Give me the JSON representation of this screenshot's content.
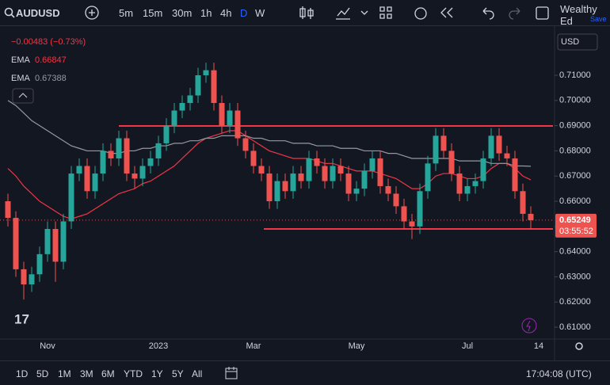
{
  "toolbar": {
    "symbol": "AUDUSD",
    "intervals": [
      "5m",
      "15m",
      "30m",
      "1h",
      "4h",
      "D",
      "W"
    ],
    "active_interval": 5,
    "account": "Wealthy Ed",
    "save": "Save"
  },
  "legend": {
    "change": "−0.00483 (−0.73%)",
    "ema_label": "EMA"
  },
  "currency": "USD",
  "countdown": "03:55:52",
  "bottom_bar": {
    "ranges": [
      "1D",
      "5D",
      "1M",
      "3M",
      "6M",
      "YTD",
      "1Y",
      "5Y",
      "All"
    ],
    "clock": "17:04:08 (UTC)"
  },
  "chart_data": {
    "type": "candlestick",
    "categories": [
      null,
      null,
      null,
      null,
      null,
      "Nov",
      null,
      null,
      null,
      null,
      null,
      null,
      null,
      null,
      null,
      null,
      null,
      null,
      null,
      "2023",
      null,
      null,
      null,
      null,
      null,
      null,
      null,
      null,
      null,
      null,
      null,
      "Mar",
      null,
      null,
      null,
      null,
      null,
      null,
      null,
      null,
      null,
      null,
      null,
      null,
      "May",
      null,
      null,
      null,
      null,
      null,
      null,
      null,
      null,
      null,
      null,
      null,
      null,
      null,
      "Jul",
      null,
      null,
      null,
      null,
      null,
      null,
      null,
      null,
      "14"
    ],
    "candles": [
      [
        0.66,
        0.663,
        0.65,
        0.6534
      ],
      [
        0.6534,
        0.656,
        0.63,
        0.633
      ],
      [
        0.633,
        0.636,
        0.621,
        0.627
      ],
      [
        0.627,
        0.634,
        0.624,
        0.631
      ],
      [
        0.631,
        0.642,
        0.628,
        0.639
      ],
      [
        0.639,
        0.652,
        0.636,
        0.649
      ],
      [
        0.649,
        0.652,
        0.628,
        0.636
      ],
      [
        0.636,
        0.655,
        0.633,
        0.652
      ],
      [
        0.652,
        0.674,
        0.649,
        0.671
      ],
      [
        0.671,
        0.677,
        0.668,
        0.674
      ],
      [
        0.674,
        0.677,
        0.661,
        0.664
      ],
      [
        0.664,
        0.674,
        0.661,
        0.671
      ],
      [
        0.671,
        0.683,
        0.668,
        0.68
      ],
      [
        0.68,
        0.683,
        0.674,
        0.677
      ],
      [
        0.677,
        0.688,
        0.674,
        0.685
      ],
      [
        0.685,
        0.688,
        0.668,
        0.671
      ],
      [
        0.671,
        0.674,
        0.665,
        0.669
      ],
      [
        0.669,
        0.677,
        0.666,
        0.674
      ],
      [
        0.674,
        0.68,
        0.671,
        0.677
      ],
      [
        0.677,
        0.686,
        0.674,
        0.683
      ],
      [
        0.683,
        0.693,
        0.68,
        0.69
      ],
      [
        0.69,
        0.699,
        0.687,
        0.696
      ],
      [
        0.696,
        0.702,
        0.693,
        0.699
      ],
      [
        0.699,
        0.705,
        0.696,
        0.702
      ],
      [
        0.702,
        0.713,
        0.699,
        0.71
      ],
      [
        0.71,
        0.715,
        0.707,
        0.712
      ],
      [
        0.712,
        0.715,
        0.696,
        0.699
      ],
      [
        0.699,
        0.702,
        0.687,
        0.69
      ],
      [
        0.69,
        0.699,
        0.687,
        0.696
      ],
      [
        0.696,
        0.699,
        0.682,
        0.685
      ],
      [
        0.685,
        0.688,
        0.677,
        0.68
      ],
      [
        0.68,
        0.683,
        0.671,
        0.674
      ],
      [
        0.674,
        0.677,
        0.668,
        0.671
      ],
      [
        0.671,
        0.674,
        0.657,
        0.66
      ],
      [
        0.66,
        0.671,
        0.657,
        0.668
      ],
      [
        0.668,
        0.671,
        0.661,
        0.664
      ],
      [
        0.664,
        0.674,
        0.661,
        0.671
      ],
      [
        0.671,
        0.674,
        0.665,
        0.668
      ],
      [
        0.668,
        0.68,
        0.665,
        0.677
      ],
      [
        0.677,
        0.68,
        0.671,
        0.674
      ],
      [
        0.674,
        0.677,
        0.665,
        0.668
      ],
      [
        0.668,
        0.677,
        0.665,
        0.674
      ],
      [
        0.674,
        0.677,
        0.668,
        0.671
      ],
      [
        0.671,
        0.674,
        0.66,
        0.663
      ],
      [
        0.663,
        0.668,
        0.66,
        0.665
      ],
      [
        0.665,
        0.675,
        0.662,
        0.672
      ],
      [
        0.672,
        0.68,
        0.669,
        0.677
      ],
      [
        0.677,
        0.68,
        0.663,
        0.666
      ],
      [
        0.666,
        0.669,
        0.66,
        0.663
      ],
      [
        0.663,
        0.666,
        0.655,
        0.658
      ],
      [
        0.658,
        0.661,
        0.649,
        0.652
      ],
      [
        0.652,
        0.655,
        0.645,
        0.65
      ],
      [
        0.65,
        0.667,
        0.647,
        0.664
      ],
      [
        0.664,
        0.678,
        0.661,
        0.675
      ],
      [
        0.675,
        0.689,
        0.672,
        0.686
      ],
      [
        0.686,
        0.689,
        0.677,
        0.68
      ],
      [
        0.68,
        0.683,
        0.668,
        0.671
      ],
      [
        0.671,
        0.674,
        0.66,
        0.663
      ],
      [
        0.663,
        0.669,
        0.66,
        0.666
      ],
      [
        0.666,
        0.671,
        0.663,
        0.668
      ],
      [
        0.668,
        0.68,
        0.665,
        0.677
      ],
      [
        0.677,
        0.689,
        0.674,
        0.686
      ],
      [
        0.686,
        0.689,
        0.676,
        0.679
      ],
      [
        0.679,
        0.682,
        0.674,
        0.677
      ],
      [
        0.677,
        0.68,
        0.661,
        0.664
      ],
      [
        0.664,
        0.667,
        0.652,
        0.655
      ],
      [
        0.655,
        0.658,
        0.649,
        0.65249
      ],
      null
    ],
    "up_color": "#26a69a",
    "down_color": "#ef5350",
    "series": [
      {
        "name": "EMA",
        "color": "#f23645",
        "values": [
          0.673,
          0.67,
          0.666,
          0.663,
          0.66,
          0.658,
          0.656,
          0.654,
          0.653,
          0.654,
          0.655,
          0.657,
          0.659,
          0.661,
          0.663,
          0.664,
          0.665,
          0.667,
          0.668,
          0.67,
          0.672,
          0.674,
          0.677,
          0.68,
          0.683,
          0.685,
          0.686,
          0.687,
          0.688,
          0.688,
          0.686,
          0.684,
          0.682,
          0.68,
          0.679,
          0.678,
          0.677,
          0.677,
          0.677,
          0.676,
          0.675,
          0.675,
          0.674,
          0.673,
          0.672,
          0.672,
          0.672,
          0.671,
          0.67,
          0.669,
          0.667,
          0.665,
          0.665,
          0.667,
          0.67,
          0.671,
          0.671,
          0.67,
          0.669,
          0.669,
          0.67,
          0.673,
          0.675,
          0.675,
          0.673,
          0.67,
          0.66847,
          null
        ]
      },
      {
        "name": "EMA",
        "color": "#9598a1",
        "values": [
          0.7,
          0.698,
          0.695,
          0.692,
          0.69,
          0.688,
          0.686,
          0.684,
          0.682,
          0.681,
          0.68,
          0.68,
          0.68,
          0.679,
          0.679,
          0.68,
          0.68,
          0.681,
          0.681,
          0.682,
          0.682,
          0.683,
          0.683,
          0.684,
          0.684,
          0.685,
          0.685,
          0.686,
          0.686,
          0.686,
          0.686,
          0.685,
          0.685,
          0.684,
          0.684,
          0.684,
          0.683,
          0.683,
          0.683,
          0.682,
          0.682,
          0.682,
          0.681,
          0.681,
          0.681,
          0.68,
          0.68,
          0.68,
          0.679,
          0.679,
          0.678,
          0.677,
          0.677,
          0.677,
          0.677,
          0.677,
          0.677,
          0.676,
          0.676,
          0.676,
          0.676,
          0.675,
          0.675,
          0.675,
          0.674,
          0.674,
          0.67388,
          null
        ]
      }
    ],
    "levels": [
      0.6899,
      0.649
    ],
    "level_color": "#f23645",
    "ylim": [
      0.6053,
      0.7273
    ],
    "yticks": [
      {
        "value": 0.61,
        "label": "0.61000"
      },
      {
        "value": 0.62,
        "label": "0.62000"
      },
      {
        "value": 0.63,
        "label": "0.63000"
      },
      {
        "value": 0.64,
        "label": "0.64000"
      },
      {
        "value": 0.65,
        "label": "0.65000"
      },
      {
        "value": 0.66,
        "label": "0.66000"
      },
      {
        "value": 0.67,
        "label": "0.67000"
      },
      {
        "value": 0.68,
        "label": "0.68000"
      },
      {
        "value": 0.69,
        "label": "0.69000"
      },
      {
        "value": 0.7,
        "label": "0.70000"
      },
      {
        "value": 0.71,
        "label": "0.71000"
      }
    ],
    "grid": false
  }
}
